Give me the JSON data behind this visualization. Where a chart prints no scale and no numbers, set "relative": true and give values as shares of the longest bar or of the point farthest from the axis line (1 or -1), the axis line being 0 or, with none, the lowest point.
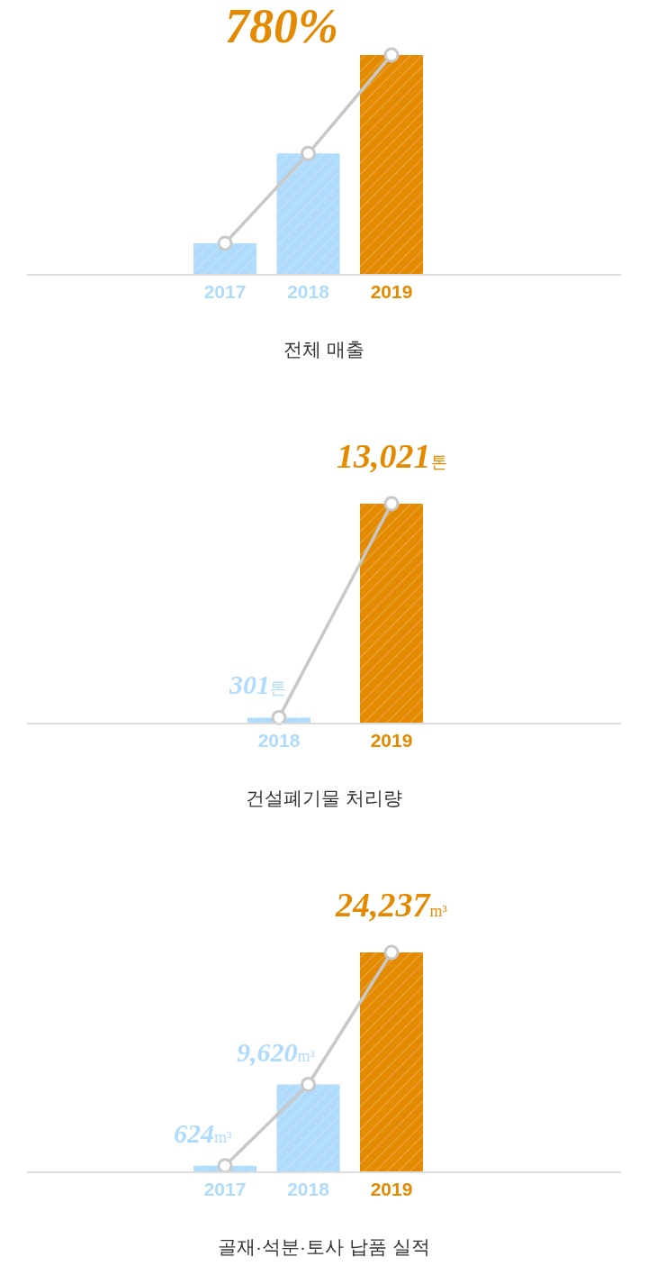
{
  "chart_data": [
    {
      "type": "bar",
      "title": "전체 매출",
      "categories": [
        "2017",
        "2018",
        "2019"
      ],
      "relative": true,
      "marker": "circle",
      "series": [
        {
          "colors": [
            "#afdbfc",
            "#afdbfc",
            "#e38a00"
          ],
          "values": [
            0.14,
            0.55,
            1
          ]
        },
        {
          "type": "line",
          "color": "#c8c8c8",
          "values": [
            0.14,
            0.55,
            1
          ]
        }
      ],
      "annotations": [
        {
          "text": "780%",
          "x": "2019",
          "y": 1
        }
      ]
    },
    {
      "type": "bar",
      "title": "건설폐기물 처리량",
      "categories": [
        "2018",
        "2019"
      ],
      "marker": "circle",
      "series": [
        {
          "colors": [
            "#afdbfc",
            "#e38a00"
          ],
          "values": [
            301,
            13021
          ],
          "value_labels": [
            "301톤",
            "13,021톤"
          ]
        },
        {
          "type": "line",
          "color": "#c8c8c8",
          "values": [
            301,
            13021
          ]
        }
      ]
    },
    {
      "type": "bar",
      "title": "골재·석분·토사 납품 실적",
      "categories": [
        "2017",
        "2018",
        "2019"
      ],
      "marker": "circle",
      "series": [
        {
          "colors": [
            "#afdbfc",
            "#afdbfc",
            "#e38a00"
          ],
          "values": [
            624,
            9620,
            24237
          ],
          "value_labels": [
            "624m³",
            "9,620m³",
            "24,237m³"
          ]
        },
        {
          "type": "line",
          "color": "#c8c8c8",
          "values": [
            624,
            9620,
            24237
          ]
        }
      ]
    }
  ]
}
